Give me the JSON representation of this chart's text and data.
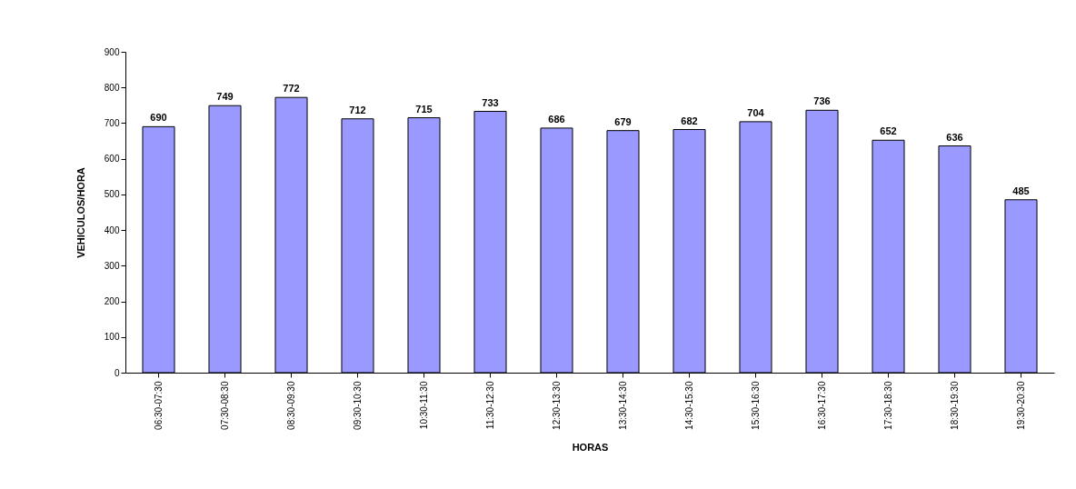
{
  "chart_data": {
    "type": "bar",
    "xlabel": "HORAS",
    "ylabel": "VEHICULOS/HORA",
    "categories": [
      "06:30-07:30",
      "07:30-08:30",
      "08:30-09:30",
      "09:30-10:30",
      "10:30-11:30",
      "11:30-12:30",
      "12:30-13:30",
      "13:30-14:30",
      "14:30-15:30",
      "15:30-16:30",
      "16:30-17:30",
      "17:30-18:30",
      "18:30-19:30",
      "19:30-20:30"
    ],
    "values": [
      690,
      749,
      772,
      712,
      715,
      733,
      686,
      679,
      682,
      704,
      736,
      652,
      636,
      485
    ],
    "color": "#9999ff",
    "ylim": [
      0,
      900
    ],
    "yticks": [
      0,
      100,
      200,
      300,
      400,
      500,
      600,
      700,
      800,
      900
    ],
    "grid": false,
    "data_labels": true
  }
}
